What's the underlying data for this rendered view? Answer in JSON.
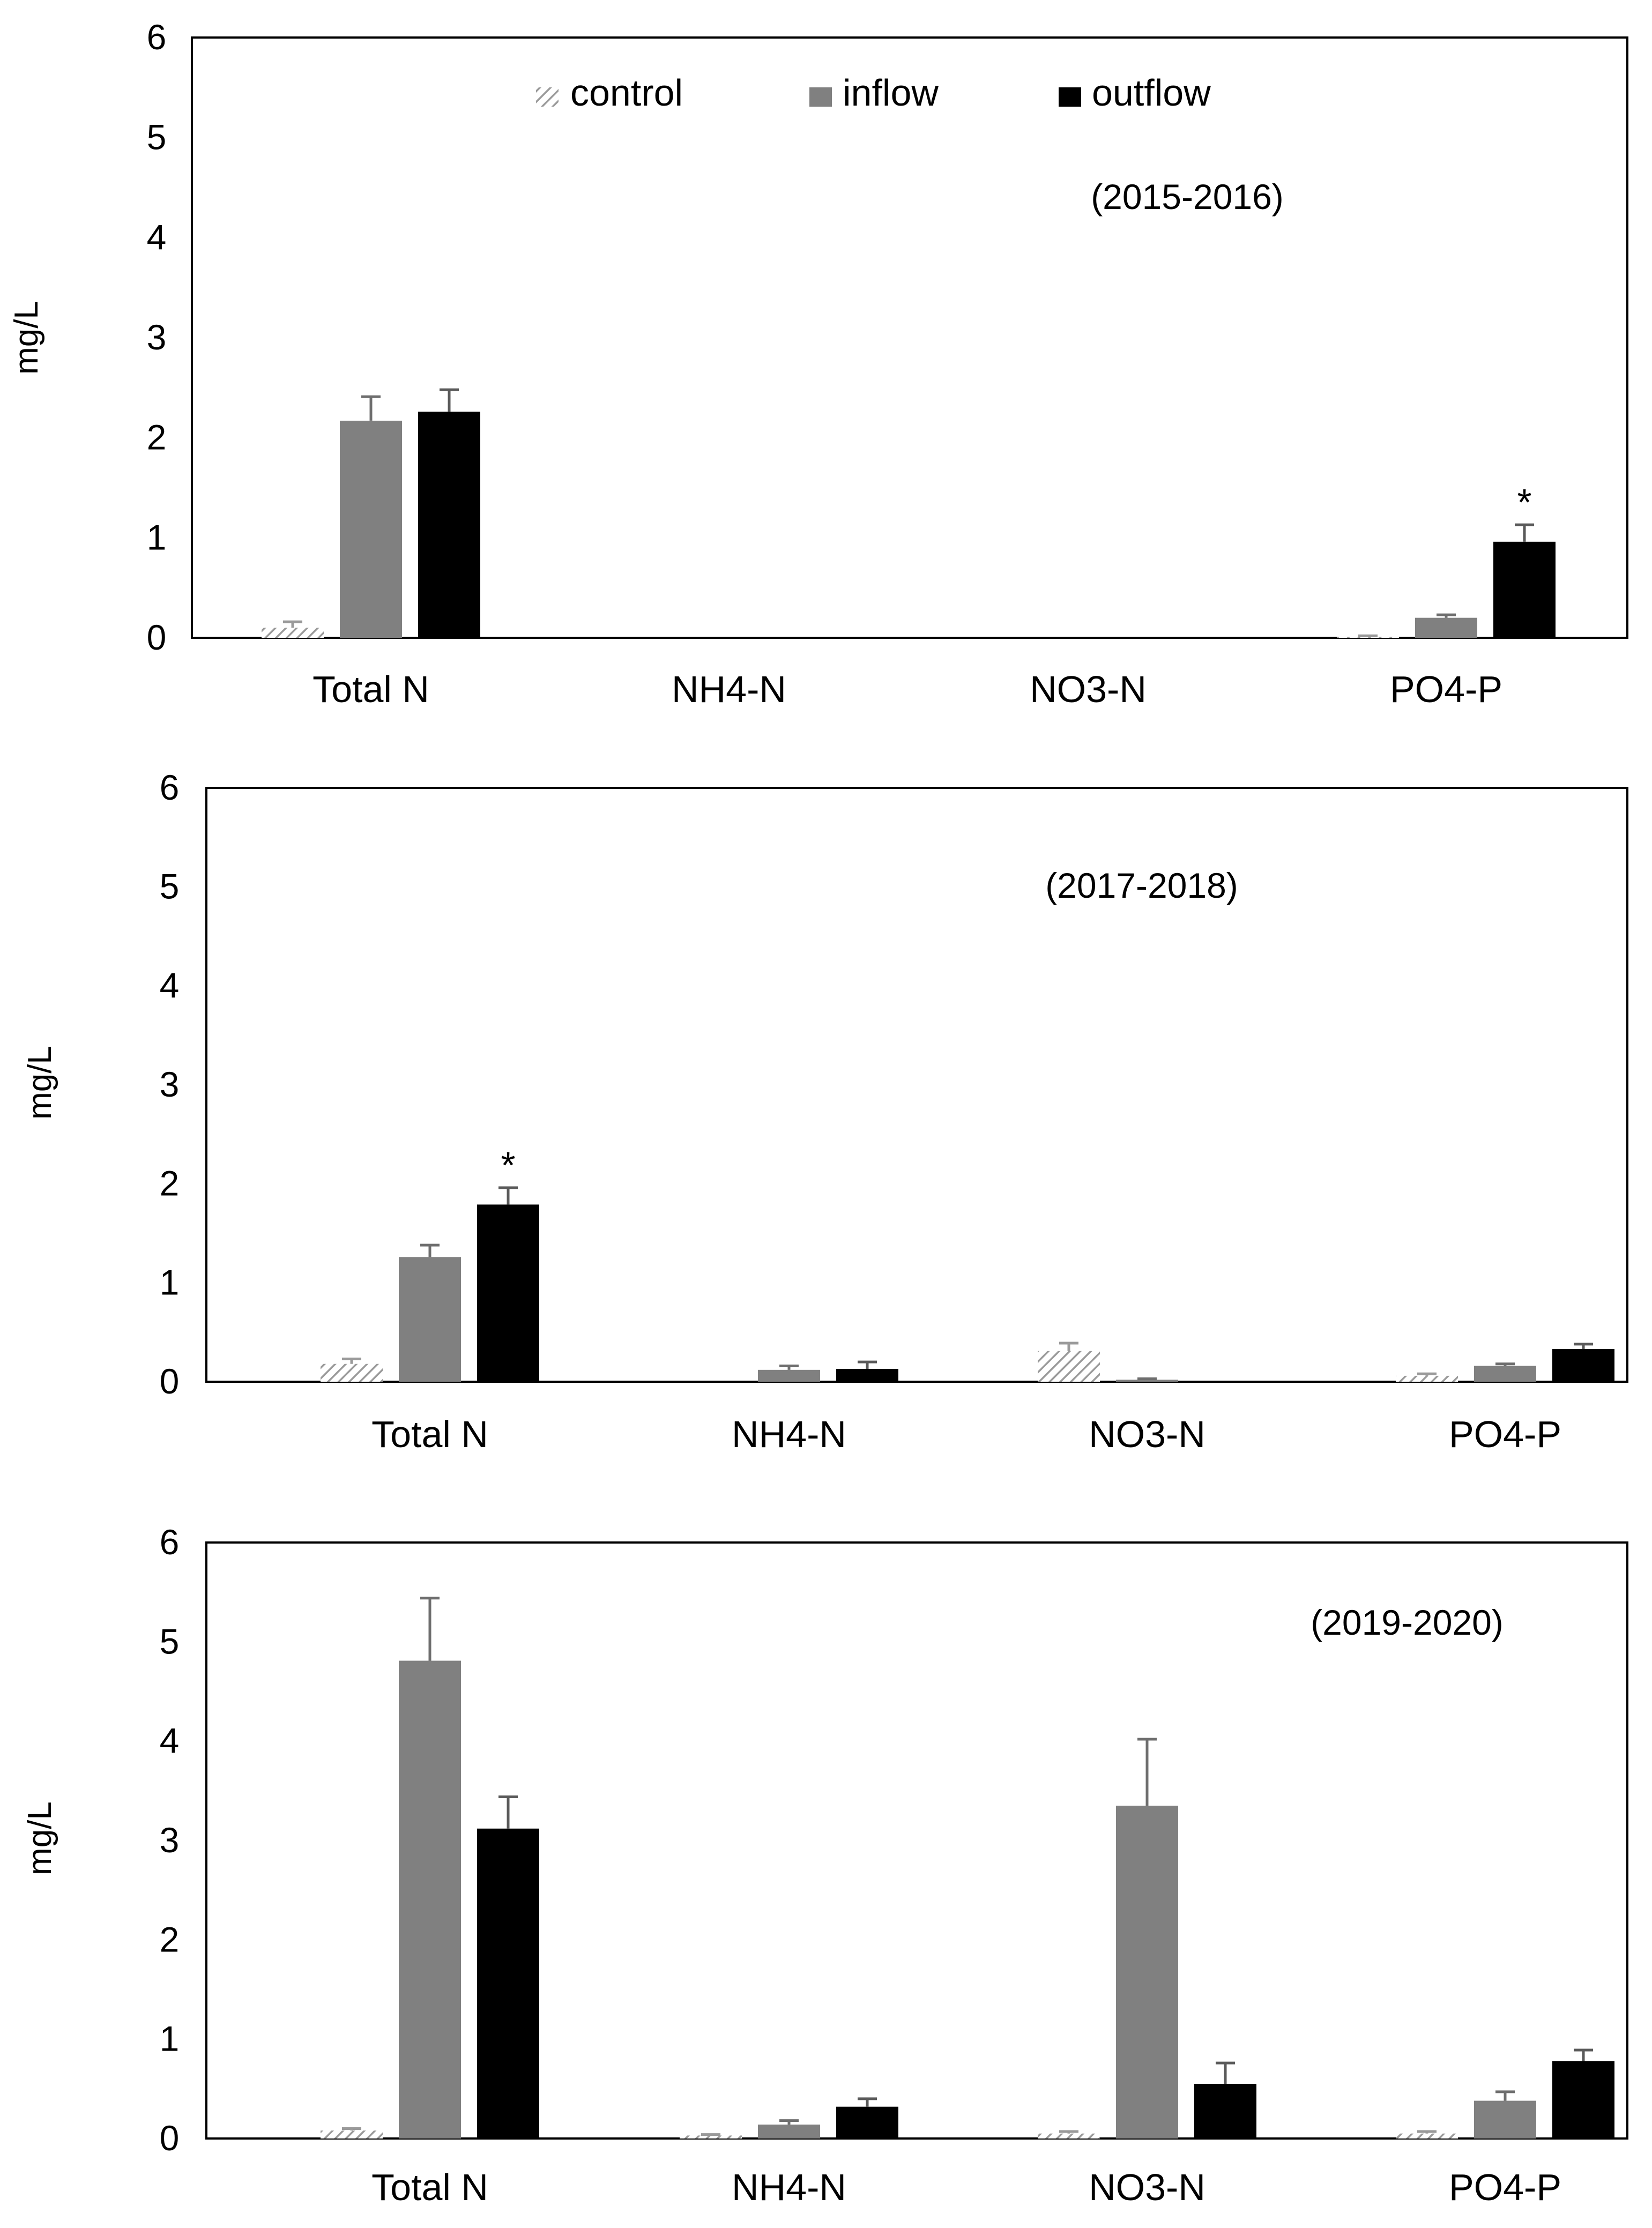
{
  "legend": {
    "items": [
      {
        "label": "control",
        "style": "hatched",
        "color": "#a6a6a6"
      },
      {
        "label": "inflow",
        "style": "solid",
        "color": "#808080"
      },
      {
        "label": "outflow",
        "style": "solid",
        "color": "#000000"
      }
    ],
    "position": "top-center (top panel)"
  },
  "chart_data": [
    {
      "type": "bar",
      "period_label": "(2015-2016)",
      "categories": [
        "Total N",
        "NH4-N",
        "NO3-N",
        "PO4-P"
      ],
      "ylabel": "mg/L",
      "ylim": [
        0,
        6
      ],
      "yticks": [
        "0",
        "1",
        "2",
        "3",
        "4",
        "5",
        "6"
      ],
      "grid": false,
      "series": [
        {
          "name": "control",
          "values": [
            0.1,
            null,
            null,
            0.01
          ],
          "errors": [
            0.06,
            null,
            null,
            0.01
          ]
        },
        {
          "name": "inflow",
          "values": [
            2.17,
            null,
            null,
            0.2
          ],
          "errors": [
            0.24,
            null,
            null,
            0.03
          ]
        },
        {
          "name": "outflow",
          "values": [
            2.26,
            null,
            null,
            0.96
          ],
          "errors": [
            0.22,
            null,
            null,
            0.17
          ]
        }
      ],
      "annotations": [
        {
          "category": "PO4-P",
          "series": "outflow",
          "text": "*"
        }
      ]
    },
    {
      "type": "bar",
      "period_label": "(2017-2018)",
      "categories": [
        "Total N",
        "NH4-N",
        "NO3-N",
        "PO4-P"
      ],
      "ylabel": "mg/L",
      "ylim": [
        0,
        6
      ],
      "yticks": [
        "0",
        "1",
        "2",
        "3",
        "4",
        "5",
        "6"
      ],
      "grid": false,
      "series": [
        {
          "name": "control",
          "values": [
            0.18,
            null,
            0.31,
            0.06
          ],
          "errors": [
            0.05,
            null,
            0.08,
            0.02
          ]
        },
        {
          "name": "inflow",
          "values": [
            1.26,
            0.12,
            0.02,
            0.16
          ],
          "errors": [
            0.12,
            0.04,
            0.01,
            0.02
          ]
        },
        {
          "name": "outflow",
          "values": [
            1.79,
            0.13,
            0.01,
            0.33
          ],
          "errors": [
            0.17,
            0.07,
            0.0,
            0.05
          ]
        }
      ],
      "annotations": [
        {
          "category": "Total N",
          "series": "outflow",
          "text": "*"
        }
      ]
    },
    {
      "type": "bar",
      "period_label": "(2019-2020)",
      "categories": [
        "Total N",
        "NH4-N",
        "NO3-N",
        "PO4-P"
      ],
      "ylabel": "mg/L",
      "ylim": [
        0,
        6
      ],
      "yticks": [
        "0",
        "1",
        "2",
        "3",
        "4",
        "5",
        "6"
      ],
      "grid": false,
      "series": [
        {
          "name": "control",
          "values": [
            0.08,
            0.03,
            0.05,
            0.05
          ],
          "errors": [
            0.02,
            0.01,
            0.02,
            0.02
          ]
        },
        {
          "name": "inflow",
          "values": [
            4.81,
            0.14,
            3.35,
            0.38
          ],
          "errors": [
            0.63,
            0.04,
            0.67,
            0.09
          ]
        },
        {
          "name": "outflow",
          "values": [
            3.12,
            0.32,
            0.55,
            0.78
          ],
          "errors": [
            0.32,
            0.08,
            0.21,
            0.11
          ]
        }
      ],
      "annotations": []
    }
  ]
}
